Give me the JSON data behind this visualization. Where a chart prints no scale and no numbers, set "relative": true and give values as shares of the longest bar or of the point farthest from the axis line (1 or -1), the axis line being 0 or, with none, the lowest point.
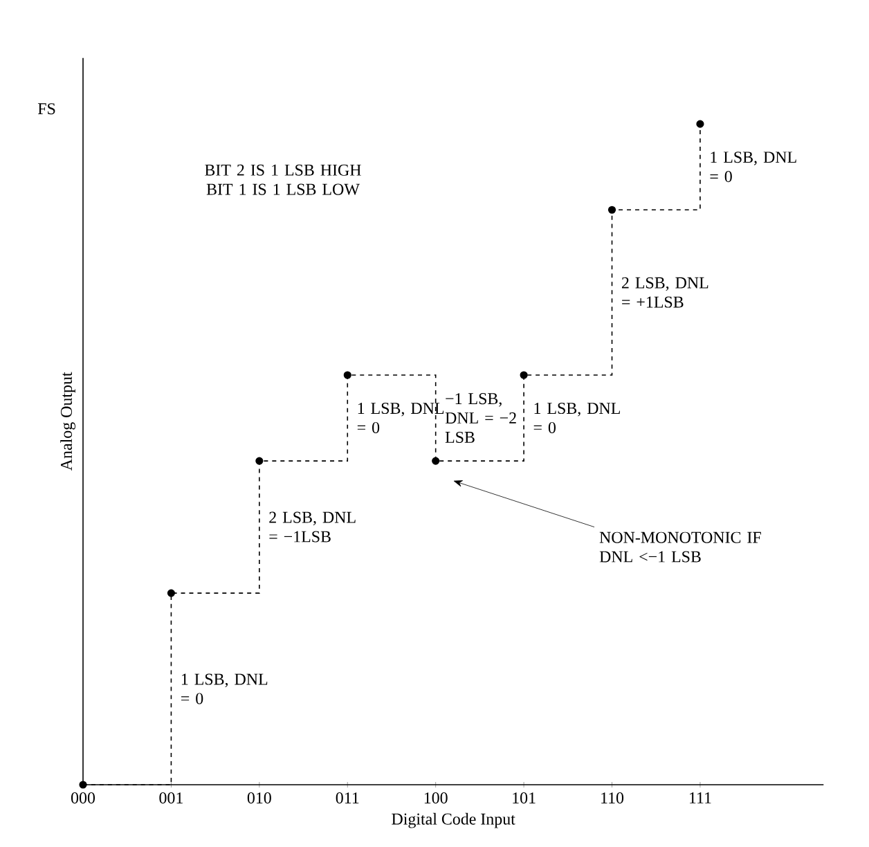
{
  "chart_data": {
    "type": "step",
    "relative": true,
    "xlabel": "Digital Code Input",
    "ylabel": "Analog Output",
    "categories": [
      "000",
      "001",
      "010",
      "011",
      "100",
      "101",
      "110",
      "111"
    ],
    "values": [
      0,
      0.29,
      0.49,
      0.62,
      0.49,
      0.62,
      0.87,
      1.0
    ],
    "color": "#000000",
    "marker": "circle",
    "line_style": "dashed",
    "annotations": [
      "FS",
      "BIT 2 IS 1 LSB HIGH BIT 1 IS 1 LSB LOW",
      "1 LSB, DNL = 0",
      "2 LSB, DNL = −1LSB",
      "1 LSB, DNL = 0",
      "−1 LSB, DNL = −2 LSB",
      "1 LSB, DNL = 0",
      "2 LSB, DNL = +1LSB",
      "1 LSB, DNL = 0",
      "NON-MONOTONIC IF DNL <−1 LSB"
    ]
  }
}
